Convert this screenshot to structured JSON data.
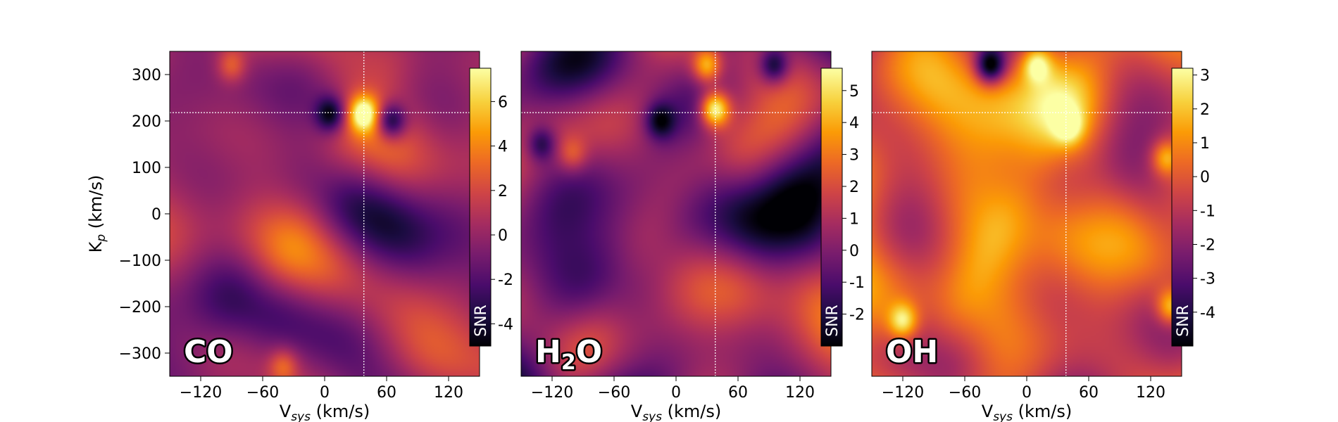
{
  "figure": {
    "shared_ylabel": "K",
    "shared_ylabel_sub": "p",
    "shared_ylabel_unit": " (km/s)",
    "xlabel_main": "V",
    "xlabel_sub": "sys",
    "xlabel_unit": " (km/s)",
    "colorbar_label": "SNR",
    "colormap": "inferno",
    "crosshair_color": "#ffffff"
  },
  "chart_data": [
    {
      "type": "heatmap",
      "panel": "CO",
      "label_parts": [
        {
          "t": "CO",
          "sub": false
        }
      ],
      "x_range": [
        -150,
        150
      ],
      "y_range": [
        -350,
        350
      ],
      "xticks": [
        -120,
        -60,
        0,
        60,
        120
      ],
      "xtick_labels": [
        "−120",
        "−60",
        "0",
        "60",
        "120"
      ],
      "yticks": [
        300,
        200,
        100,
        0,
        -100,
        -200,
        -300
      ],
      "ytick_labels": [
        "300",
        "200",
        "100",
        "0",
        "−100",
        "−200",
        "−300"
      ],
      "crosshair": {
        "vsys": 38,
        "kp": 218
      },
      "colorbar_range": [
        -5,
        7.5
      ],
      "colorbar_ticks": [
        6,
        4,
        2,
        0,
        -2,
        -4
      ],
      "colorbar_tick_labels": [
        "6",
        "4",
        "2",
        "0",
        "-2",
        "-4"
      ],
      "peak": {
        "vsys": 38,
        "kp": 215,
        "snr": 7.5
      },
      "features": [
        {
          "vsys": 38,
          "kp": 215,
          "snr": 7.5
        },
        {
          "vsys": 5,
          "kp": 215,
          "snr": -5
        },
        {
          "vsys": 65,
          "kp": 200,
          "snr": -4.8
        },
        {
          "vsys": -90,
          "kp": 320,
          "snr": 3
        },
        {
          "vsys": -40,
          "kp": -330,
          "snr": 3
        }
      ]
    },
    {
      "type": "heatmap",
      "panel": "H2O",
      "label_parts": [
        {
          "t": "H",
          "sub": false
        },
        {
          "t": "2",
          "sub": true
        },
        {
          "t": "O",
          "sub": false
        }
      ],
      "x_range": [
        -150,
        150
      ],
      "y_range": [
        -350,
        350
      ],
      "xticks": [
        -120,
        -60,
        0,
        60,
        120
      ],
      "xtick_labels": [
        "−120",
        "−60",
        "0",
        "60",
        "120"
      ],
      "crosshair": {
        "vsys": 38,
        "kp": 218
      },
      "colorbar_range": [
        -3,
        5.7
      ],
      "colorbar_ticks": [
        5,
        4,
        3,
        2,
        1,
        0,
        -1,
        -2
      ],
      "colorbar_tick_labels": [
        "5",
        "4",
        "3",
        "2",
        "1",
        "0",
        "-1",
        "-2"
      ],
      "peak": {
        "vsys": 38,
        "kp": 225,
        "snr": 5.5
      },
      "features": [
        {
          "vsys": 38,
          "kp": 225,
          "snr": 5.5
        },
        {
          "vsys": 30,
          "kp": 320,
          "snr": 4
        },
        {
          "vsys": -15,
          "kp": 200,
          "snr": -3
        },
        {
          "vsys": 95,
          "kp": 320,
          "snr": -3
        },
        {
          "vsys": -130,
          "kp": 150,
          "snr": -2.5
        },
        {
          "vsys": -100,
          "kp": 130,
          "snr": 2
        }
      ]
    },
    {
      "type": "heatmap",
      "panel": "OH",
      "label_parts": [
        {
          "t": "OH",
          "sub": false
        }
      ],
      "x_range": [
        -150,
        150
      ],
      "y_range": [
        -350,
        350
      ],
      "xticks": [
        -120,
        -60,
        0,
        60,
        120
      ],
      "xtick_labels": [
        "−120",
        "−60",
        "0",
        "60",
        "120"
      ],
      "crosshair": {
        "vsys": 38,
        "kp": 218
      },
      "colorbar_range": [
        -5,
        3.2
      ],
      "colorbar_ticks": [
        3,
        2,
        1,
        0,
        -1,
        -2,
        -3,
        -4
      ],
      "colorbar_tick_labels": [
        "3",
        "2",
        "1",
        "0",
        "-1",
        "-2",
        "-3",
        "-4"
      ],
      "peak": {
        "vsys": 10,
        "kp": 320,
        "snr": 3.2
      },
      "features": [
        {
          "vsys": 10,
          "kp": 320,
          "snr": 3.2
        },
        {
          "vsys": 40,
          "kp": 190,
          "snr": 3
        },
        {
          "vsys": -120,
          "kp": -230,
          "snr": 3.2
        },
        {
          "vsys": 140,
          "kp": -200,
          "snr": 2.8
        },
        {
          "vsys": -35,
          "kp": 320,
          "snr": -5
        },
        {
          "vsys": 135,
          "kp": 120,
          "snr": 2.5
        }
      ]
    }
  ]
}
